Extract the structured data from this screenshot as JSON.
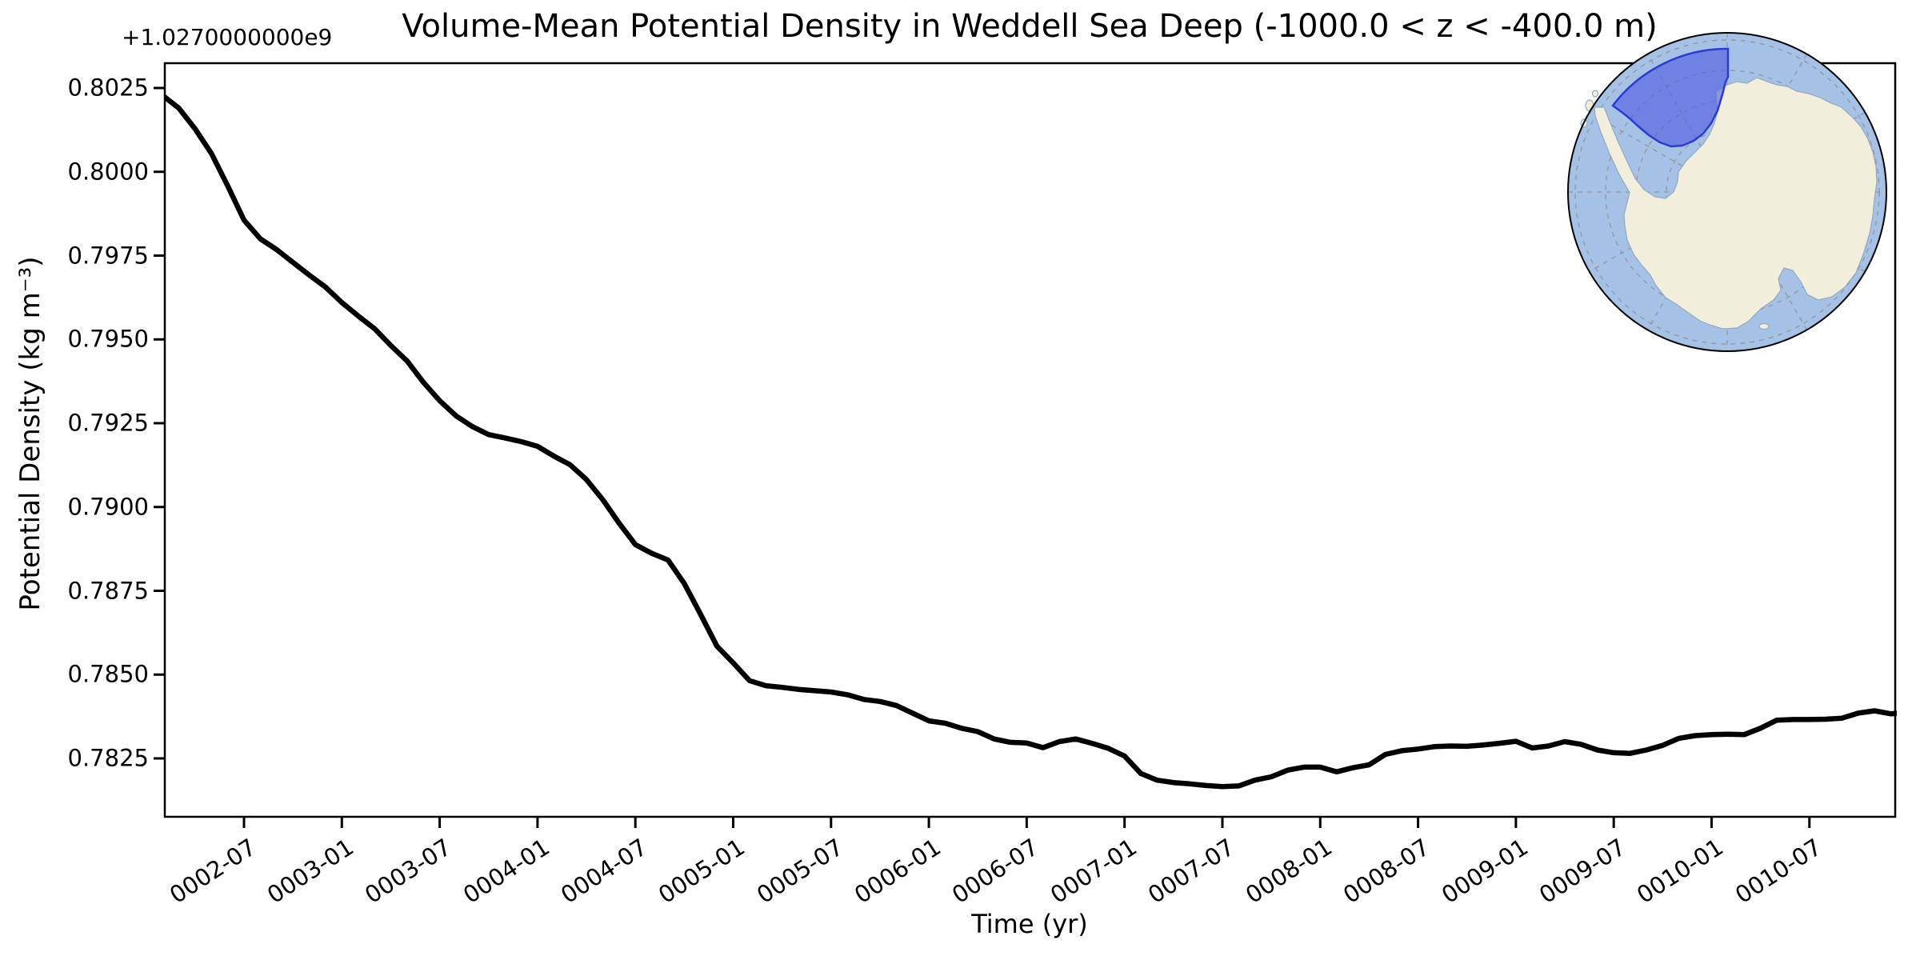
{
  "figure": {
    "title": "Volume-Mean Potential Density in Weddell Sea Deep (-1000.0 < z < -400.0 m)",
    "xlabel": "Time (yr)",
    "ylabel": "Potential Density (kg m⁻³)",
    "offset_text": "+1.0270000000e9",
    "background_color": "#ffffff",
    "axes_color": "#000000"
  },
  "chart_data": {
    "type": "line",
    "title": "Volume-Mean Potential Density in Weddell Sea Deep (-1000.0 < z < -400.0 m)",
    "xlabel": "Time (yr)",
    "ylabel": "Potential Density (kg m⁻³)",
    "y_offset_text": "+1.0270000000e9",
    "grid": false,
    "legend": false,
    "ylim": [
      0.7807,
      0.8033
    ],
    "x_tick_labels": [
      "0002-07",
      "0003-01",
      "0003-07",
      "0004-01",
      "0004-07",
      "0005-01",
      "0005-07",
      "0006-01",
      "0006-07",
      "0007-01",
      "0007-07",
      "0008-01",
      "0008-07",
      "0009-01",
      "0009-07",
      "0010-01",
      "0010-07"
    ],
    "y_tick_labels": [
      "0.8025",
      "0.8000",
      "0.7975",
      "0.7950",
      "0.7925",
      "0.7900",
      "0.7875",
      "0.7850",
      "0.7825"
    ],
    "series": [
      {
        "name": "volume-mean potential density",
        "color": "#000000",
        "points": [
          [
            "0002-02",
            0.80228
          ],
          [
            "0002-03",
            0.8019
          ],
          [
            "0002-04",
            0.80128
          ],
          [
            "0002-05",
            0.80055
          ],
          [
            "0002-06",
            0.79958
          ],
          [
            "0002-07",
            0.79856
          ],
          [
            "0002-08",
            0.798
          ],
          [
            "0002-09",
            0.79768
          ],
          [
            "0002-10",
            0.7973
          ],
          [
            "0002-11",
            0.79692
          ],
          [
            "0002-12",
            0.79656
          ],
          [
            "0003-01",
            0.7961
          ],
          [
            "0003-02",
            0.7957
          ],
          [
            "0003-03",
            0.79532
          ],
          [
            "0003-04",
            0.79482
          ],
          [
            "0003-05",
            0.79436
          ],
          [
            "0003-06",
            0.79372
          ],
          [
            "0003-07",
            0.79317
          ],
          [
            "0003-08",
            0.79272
          ],
          [
            "0003-09",
            0.7924
          ],
          [
            "0003-10",
            0.79216
          ],
          [
            "0003-11",
            0.79206
          ],
          [
            "0003-12",
            0.79195
          ],
          [
            "0004-01",
            0.79181
          ],
          [
            "0004-02",
            0.79152
          ],
          [
            "0004-03",
            0.79126
          ],
          [
            "0004-04",
            0.79082
          ],
          [
            "0004-05",
            0.79022
          ],
          [
            "0004-06",
            0.78952
          ],
          [
            "0004-07",
            0.78888
          ],
          [
            "0004-08",
            0.78862
          ],
          [
            "0004-09",
            0.78842
          ],
          [
            "0004-10",
            0.78772
          ],
          [
            "0004-11",
            0.7868
          ],
          [
            "0004-12",
            0.78585
          ],
          [
            "0005-01",
            0.78535
          ],
          [
            "0005-02",
            0.78482
          ],
          [
            "0005-03",
            0.78467
          ],
          [
            "0005-04",
            0.78462
          ],
          [
            "0005-05",
            0.78456
          ],
          [
            "0005-06",
            0.78452
          ],
          [
            "0005-07",
            0.78448
          ],
          [
            "0005-08",
            0.7844
          ],
          [
            "0005-09",
            0.78426
          ],
          [
            "0005-10",
            0.7842
          ],
          [
            "0005-11",
            0.78408
          ],
          [
            "0005-12",
            0.78385
          ],
          [
            "0006-01",
            0.78362
          ],
          [
            "0006-02",
            0.78355
          ],
          [
            "0006-03",
            0.7834
          ],
          [
            "0006-04",
            0.7833
          ],
          [
            "0006-05",
            0.78308
          ],
          [
            "0006-06",
            0.78298
          ],
          [
            "0006-07",
            0.78296
          ],
          [
            "0006-08",
            0.78282
          ],
          [
            "0006-09",
            0.783
          ],
          [
            "0006-10",
            0.78308
          ],
          [
            "0006-11",
            0.78295
          ],
          [
            "0006-12",
            0.7828
          ],
          [
            "0007-01",
            0.78257
          ],
          [
            "0007-02",
            0.78205
          ],
          [
            "0007-03",
            0.78185
          ],
          [
            "0007-04",
            0.78178
          ],
          [
            "0007-05",
            0.78174
          ],
          [
            "0007-06",
            0.78169
          ],
          [
            "0007-07",
            0.78166
          ],
          [
            "0007-08",
            0.78168
          ],
          [
            "0007-09",
            0.78185
          ],
          [
            "0007-10",
            0.78195
          ],
          [
            "0007-11",
            0.78215
          ],
          [
            "0007-12",
            0.78224
          ],
          [
            "0008-01",
            0.78224
          ],
          [
            "0008-02",
            0.7821
          ],
          [
            "0008-03",
            0.78222
          ],
          [
            "0008-04",
            0.78231
          ],
          [
            "0008-05",
            0.78262
          ],
          [
            "0008-06",
            0.78273
          ],
          [
            "0008-07",
            0.78278
          ],
          [
            "0008-08",
            0.78285
          ],
          [
            "0008-09",
            0.78287
          ],
          [
            "0008-10",
            0.78286
          ],
          [
            "0008-11",
            0.7829
          ],
          [
            "0008-12",
            0.78295
          ],
          [
            "0009-01",
            0.78301
          ],
          [
            "0009-02",
            0.78281
          ],
          [
            "0009-03",
            0.78287
          ],
          [
            "0009-04",
            0.783
          ],
          [
            "0009-05",
            0.78292
          ],
          [
            "0009-06",
            0.78275
          ],
          [
            "0009-07",
            0.78267
          ],
          [
            "0009-08",
            0.78265
          ],
          [
            "0009-09",
            0.78275
          ],
          [
            "0009-10",
            0.78289
          ],
          [
            "0009-11",
            0.7831
          ],
          [
            "0009-12",
            0.78318
          ],
          [
            "0010-01",
            0.78321
          ],
          [
            "0010-02",
            0.78322
          ],
          [
            "0010-03",
            0.78321
          ],
          [
            "0010-04",
            0.7834
          ],
          [
            "0010-05",
            0.78364
          ],
          [
            "0010-06",
            0.78366
          ],
          [
            "0010-07",
            0.78366
          ],
          [
            "0010-08",
            0.78367
          ],
          [
            "0010-09",
            0.7837
          ],
          [
            "0010-10",
            0.78385
          ],
          [
            "0010-11",
            0.78392
          ],
          [
            "0010-12",
            0.78383
          ],
          [
            "0011-01",
            0.78387
          ]
        ]
      }
    ]
  },
  "inset_map": {
    "ocean_color": "#a5c2e6",
    "land_color": "#f1eedc",
    "land_edge_color": "#93a9c4",
    "graticule_color": "#8f8f8f",
    "region_fill": "#4d5be0",
    "region_edge": "#2c3bd4",
    "map_edge_color": "#000000"
  }
}
